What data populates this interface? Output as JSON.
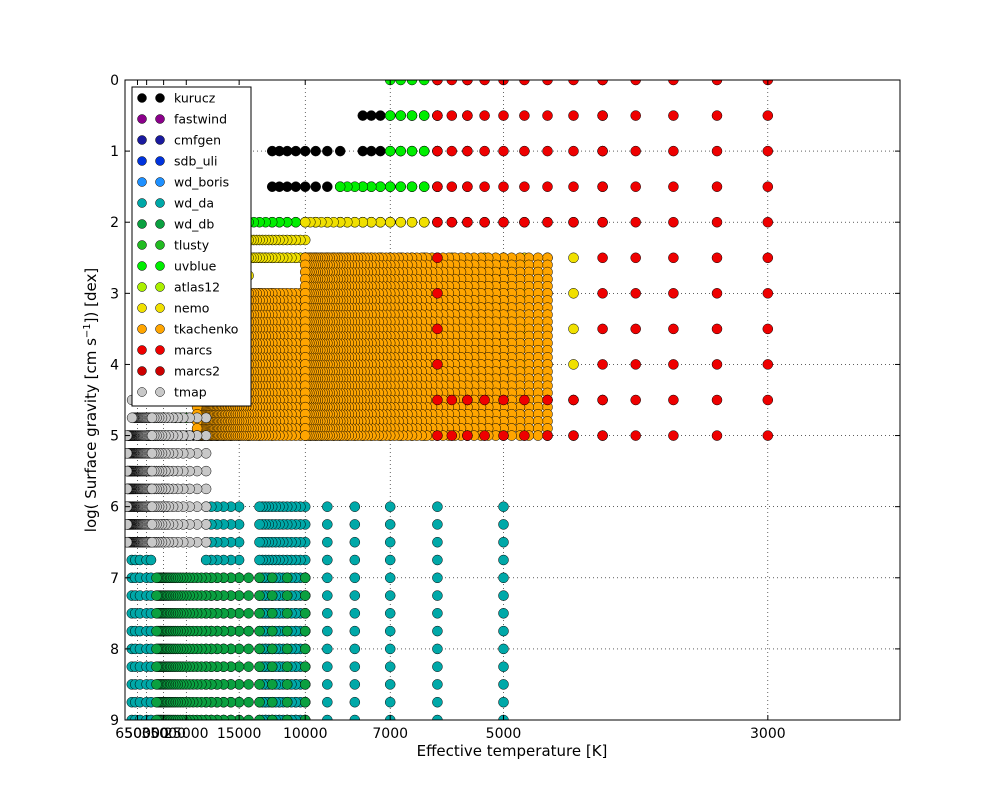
{
  "chart_data": {
    "type": "scatter",
    "xlabel": "Effective temperature [K]",
    "ylabel_parts": [
      "log( Surface gravity [cm s",
      "−1",
      "]) [dex]"
    ],
    "x_scale": "reciprocal",
    "xlim": [
      110000,
      2500
    ],
    "ylim": [
      9,
      0
    ],
    "x_ticks": [
      65000,
      50000,
      35000,
      25000,
      15000,
      10000,
      7000,
      5000,
      3000
    ],
    "y_ticks": [
      0,
      1,
      2,
      3,
      4,
      5,
      6,
      7,
      8,
      9
    ],
    "grid": true,
    "legend_position": "top-left",
    "series": [
      {
        "name": "kurucz",
        "color": "#000000",
        "regions": [
          {
            "t": [
              6000,
              7750
            ],
            "dt": 250,
            "g": [
              0.5,
              2.0
            ],
            "dg": 0.5
          },
          {
            "t": [
              8500,
              12000
            ],
            "dt": 500,
            "g": [
              1.0,
              2.0
            ],
            "dg": 0.5
          },
          {
            "t": [
              12000,
              50000
            ],
            "dt": 1000,
            "g": [
              2.5,
              5.0
            ],
            "dg": 0.5
          }
        ]
      },
      {
        "name": "fastwind",
        "color": "#8b008b",
        "regions": [
          {
            "t": [
              30000,
              37000
            ],
            "dt": 500,
            "g": [
              3.25,
              4.0
            ],
            "dg": 0.125
          }
        ]
      },
      {
        "name": "cmfgen",
        "color": "#1a1a9e",
        "regions": [
          {
            "t": [
              27000,
              44000
            ],
            "dt": 1500,
            "g": [
              3.25,
              4.25
            ],
            "dg": 0.25
          },
          {
            "t": [
              33000,
              36000
            ],
            "dt": 1500,
            "g": [
              5.5,
              6.25
            ],
            "dg": 0.25
          }
        ]
      },
      {
        "name": "sdb_uli",
        "color": "#0033dd",
        "regions": [
          {
            "t": [
              14000,
              20000
            ],
            "dt": 1000,
            "g": [
              7.75,
              7.75
            ],
            "dg": 0.25
          }
        ]
      },
      {
        "name": "wd_boris",
        "color": "#1e90ff",
        "regions": [
          {
            "t": [
              10000,
              12500
            ],
            "dt": 500,
            "g": [
              7.0,
              9.0
            ],
            "dg": 0.25
          }
        ]
      },
      {
        "name": "wd_da",
        "color": "#00a8a8",
        "regions": [
          {
            "t": [
              80000,
              80000
            ],
            "dt": 1,
            "g": [
              6.75,
              9.0
            ],
            "dg": 0.25
          },
          {
            "t": [
              70000,
              70000
            ],
            "dt": 1,
            "g": [
              6.75,
              9.0
            ],
            "dg": 0.25
          },
          {
            "t": [
              60000,
              60000
            ],
            "dt": 1,
            "g": [
              6.75,
              9.0
            ],
            "dg": 0.25
          },
          {
            "t": [
              50000,
              50000
            ],
            "dt": 1,
            "g": [
              6.75,
              9.0
            ],
            "dg": 0.25
          },
          {
            "t": [
              45000,
              45000
            ],
            "dt": 1,
            "g": [
              6.75,
              9.0
            ],
            "dg": 0.25
          },
          {
            "t": [
              15000,
              20000
            ],
            "dt": 1000,
            "g": [
              6.0,
              9.0
            ],
            "dg": 0.25
          },
          {
            "t": [
              10000,
              13000
            ],
            "dt": 250,
            "g": [
              6.0,
              9.0
            ],
            "dg": 0.25
          },
          {
            "t": [
              9000,
              9000
            ],
            "dt": 1,
            "g": [
              6.0,
              9.0
            ],
            "dg": 0.25
          },
          {
            "t": [
              8000,
              8000
            ],
            "dt": 1,
            "g": [
              6.0,
              9.0
            ],
            "dg": 0.25
          },
          {
            "t": [
              7000,
              7000
            ],
            "dt": 1,
            "g": [
              6.0,
              9.0
            ],
            "dg": 0.25
          },
          {
            "t": [
              6000,
              6000
            ],
            "dt": 1,
            "g": [
              6.0,
              9.0
            ],
            "dg": 0.25
          },
          {
            "t": [
              5000,
              5000
            ],
            "dt": 1,
            "g": [
              6.0,
              9.0
            ],
            "dg": 0.25
          }
        ]
      },
      {
        "name": "wd_db",
        "color": "#0aa040",
        "regions": [
          {
            "t": [
              10000,
              40000
            ],
            "dt": 1000,
            "g": [
              7.0,
              9.0
            ],
            "dg": 0.25
          }
        ]
      },
      {
        "name": "tlusty",
        "color": "#22bb22",
        "regions": [
          {
            "t": [
              30000,
              55000
            ],
            "dt": 2500,
            "g": [
              3.0,
              4.75
            ],
            "dg": 0.25
          },
          {
            "t": [
              15000,
              30000
            ],
            "dt": 1000,
            "g": [
              2.0,
              4.75
            ],
            "dg": 0.25
          },
          {
            "t": [
              15000,
              15000
            ],
            "dt": 1,
            "g": [
              1.75,
              1.75
            ],
            "dg": 0.25
          }
        ]
      },
      {
        "name": "uvblue",
        "color": "#00ee00",
        "regions": [
          {
            "t": [
              6000,
              7000
            ],
            "dt": 250,
            "g": [
              0.0,
              1.5
            ],
            "dg": 0.5
          },
          {
            "t": [
              7000,
              8500
            ],
            "dt": 250,
            "g": [
              1.5,
              2.0
            ],
            "dg": 0.5
          },
          {
            "t": [
              8500,
              14000
            ],
            "dt": 500,
            "g": [
              2.0,
              2.5
            ],
            "dg": 0.5
          },
          {
            "t": [
              14000,
              50000
            ],
            "dt": 2000,
            "g": [
              2.5,
              5.0
            ],
            "dg": 0.5
          }
        ]
      },
      {
        "name": "atlas12",
        "color": "#aaf000",
        "regions": []
      },
      {
        "name": "nemo",
        "color": "#f0e000",
        "regions": [
          {
            "t": [
              4250,
              10000
            ],
            "dt": 250,
            "g": [
              2.0,
              5.0
            ],
            "dg": 0.5
          },
          {
            "t": [
              10000,
              17000
            ],
            "dt": 250,
            "g": [
              2.25,
              2.5
            ],
            "dg": 0.25
          },
          {
            "t": [
              14000,
              17000
            ],
            "dt": 250,
            "g": [
              2.75,
              2.75
            ],
            "dg": 0.25
          }
        ]
      },
      {
        "name": "tkachenko",
        "color": "#ffa500",
        "regions": [
          {
            "t": [
              10000,
              22000
            ],
            "dt": 250,
            "g": [
              3.0,
              5.0
            ],
            "dg": 0.1
          },
          {
            "t": [
              4500,
              10000
            ],
            "dt": 100,
            "g": [
              2.5,
              5.0
            ],
            "dg": 0.1
          }
        ]
      },
      {
        "name": "marcs",
        "color": "#ee0000",
        "regions": [
          {
            "t": [
              3000,
              4000
            ],
            "dt": 250,
            "g": [
              0.0,
              5.0
            ],
            "dg": 0.5
          },
          {
            "t": [
              4000,
              5500
            ],
            "dt": 250,
            "g": [
              0.0,
              2.0
            ],
            "dg": 0.5
          },
          {
            "t": [
              4000,
              5500
            ],
            "dt": 250,
            "g": [
              4.5,
              5.0
            ],
            "dg": 0.5
          },
          {
            "t": [
              5500,
              6000
            ],
            "dt": 250,
            "g": [
              0.0,
              2.0
            ],
            "dg": 0.5
          },
          {
            "t": [
              5500,
              6000
            ],
            "dt": 250,
            "g": [
              4.5,
              5.0
            ],
            "dg": 0.5
          },
          {
            "t": [
              6000,
              6000
            ],
            "dt": 1,
            "g": [
              2.5,
              4.0
            ],
            "dg": 0.5
          }
        ]
      },
      {
        "name": "marcs2",
        "color": "#cc0000",
        "regions": []
      },
      {
        "name": "tmap",
        "color": "#c8c8c8",
        "regions": [
          {
            "t": [
              45000,
              100000
            ],
            "dt": 2000,
            "g": [
              5.0,
              6.5
            ],
            "dg": 0.25
          },
          {
            "t": [
              45000,
              80000
            ],
            "dt": 2000,
            "g": [
              4.5,
              4.75
            ],
            "dg": 0.25
          },
          {
            "t": [
              20000,
              45000
            ],
            "dt": 2000,
            "g": [
              4.5,
              6.5
            ],
            "dg": 0.25
          }
        ]
      }
    ]
  }
}
